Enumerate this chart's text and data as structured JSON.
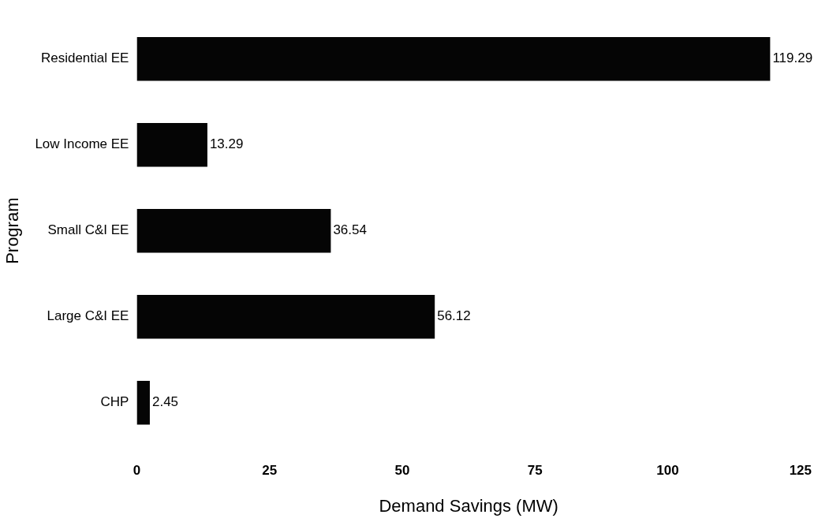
{
  "chart_data": {
    "type": "bar",
    "orientation": "horizontal",
    "xlabel": "Demand Savings (MW)",
    "ylabel": "Program",
    "categories": [
      "Residential EE",
      "Low Income EE",
      "Small C&I EE",
      "Large C&I EE",
      "CHP"
    ],
    "values": [
      119.29,
      13.29,
      36.54,
      56.12,
      2.45
    ],
    "color": "#050505",
    "xlim": [
      0,
      125
    ],
    "xticks": [
      0,
      25,
      50,
      75,
      100,
      125
    ],
    "grid": false,
    "legend": false,
    "data_labels": true
  }
}
